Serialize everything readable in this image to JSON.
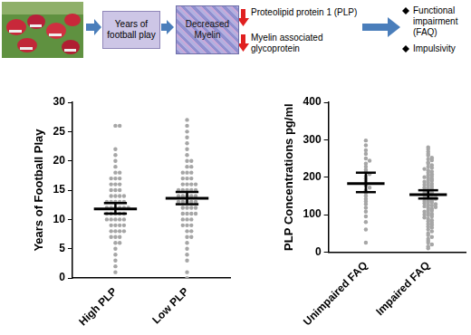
{
  "flow": {
    "steps": [
      "Years of football play",
      "Decreased Myelin"
    ],
    "decreased": [
      "Proteolipid protein 1 (PLP)",
      "Myelin associated glycoprotein"
    ],
    "outcomes": [
      "Functional impairment (FAQ)",
      "Impulsivity"
    ]
  },
  "chart_data": [
    {
      "type": "scatter",
      "y_label": "Years of Football Play",
      "categories": [
        "High PLP",
        "Low PLP"
      ],
      "values": [
        [
          26,
          26,
          22,
          21,
          20,
          19,
          18,
          18,
          17,
          17,
          17,
          16,
          16,
          16,
          15,
          15,
          15,
          14,
          14,
          14,
          14,
          13,
          13,
          13,
          13,
          13,
          12,
          12,
          12,
          12,
          12,
          12,
          11,
          11,
          11,
          11,
          11,
          10,
          10,
          10,
          10,
          10,
          9,
          9,
          9,
          9,
          8,
          8,
          8,
          8,
          7,
          7,
          7,
          6,
          6,
          5,
          4,
          3,
          2,
          1
        ],
        [
          27,
          26,
          25,
          24,
          23,
          22,
          21,
          20,
          20,
          19,
          19,
          18,
          18,
          18,
          17,
          17,
          17,
          16,
          16,
          16,
          16,
          15,
          15,
          15,
          15,
          15,
          14,
          14,
          14,
          14,
          14,
          13,
          13,
          13,
          13,
          13,
          12,
          12,
          12,
          12,
          11,
          11,
          11,
          11,
          10,
          10,
          10,
          9,
          9,
          9,
          8,
          8,
          7,
          7,
          6,
          5,
          4,
          3,
          1,
          0
        ]
      ],
      "mean": [
        11.8,
        13.6
      ],
      "error_bars": [
        [
          11.0,
          12.8
        ],
        [
          12.6,
          14.7
        ]
      ],
      "color": "#a6a6a6",
      "ylim": [
        0,
        30
      ],
      "yticks": [
        0,
        5,
        10,
        15,
        20,
        25,
        30
      ],
      "grid": false
    },
    {
      "type": "scatter",
      "y_label": "PLP Concentrations pg/ml",
      "categories": [
        "Unimpaired FAQ",
        "Impaired FAQ"
      ],
      "values": [
        [
          298,
          285,
          272,
          262,
          250,
          244,
          236,
          228,
          220,
          214,
          208,
          202,
          196,
          190,
          184,
          178,
          172,
          165,
          158,
          150,
          142,
          135,
          128,
          118,
          108,
          95,
          80,
          60,
          25
        ],
        [
          280,
          275,
          268,
          262,
          258,
          252,
          248,
          245,
          240,
          236,
          232,
          228,
          225,
          222,
          218,
          215,
          212,
          208,
          205,
          202,
          200,
          198,
          195,
          192,
          190,
          188,
          185,
          182,
          180,
          178,
          175,
          172,
          170,
          168,
          165,
          162,
          160,
          158,
          156,
          154,
          152,
          150,
          148,
          146,
          144,
          142,
          140,
          138,
          136,
          134,
          132,
          130,
          128,
          126,
          124,
          122,
          120,
          118,
          115,
          112,
          110,
          108,
          105,
          102,
          100,
          98,
          95,
          92,
          88,
          85,
          82,
          78,
          75,
          72,
          68,
          65,
          60,
          55,
          50,
          45,
          40,
          35,
          30,
          25,
          20,
          15,
          10
        ]
      ],
      "mean": [
        183,
        153
      ],
      "error_bars": [
        [
          160,
          212
        ],
        [
          143,
          165
        ]
      ],
      "color": "#a6a6a6",
      "ylim": [
        0,
        400
      ],
      "yticks": [
        0,
        100,
        200,
        300,
        400
      ],
      "grid": false
    }
  ]
}
